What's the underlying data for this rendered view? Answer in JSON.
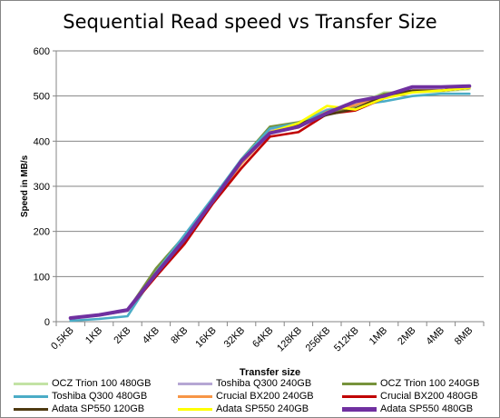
{
  "chart_data": {
    "type": "line",
    "title": "Sequential Read speed vs Transfer Size",
    "xlabel": "Transfer size",
    "ylabel": "Speed in MB/s",
    "ylim": [
      0,
      600
    ],
    "yticks": [
      0,
      100,
      200,
      300,
      400,
      500,
      600
    ],
    "grid": true,
    "legend_position": "bottom",
    "categories": [
      "0,5KB",
      "1KB",
      "2KB",
      "4KB",
      "8KB",
      "16KB",
      "32KB",
      "64KB",
      "128KB",
      "256KB",
      "512KB",
      "1MB",
      "2MB",
      "4MB",
      "8MB"
    ],
    "series": [
      {
        "name": "OCZ Trion 100 480GB",
        "color": "#c3e3a5",
        "values": [
          8,
          14,
          25,
          112,
          185,
          270,
          360,
          428,
          440,
          470,
          480,
          508,
          508,
          510,
          515
        ]
      },
      {
        "name": "Toshiba Q300 240GB",
        "color": "#b6a7d4",
        "values": [
          8,
          14,
          24,
          108,
          182,
          268,
          358,
          425,
          440,
          470,
          482,
          500,
          510,
          512,
          518
        ]
      },
      {
        "name": "OCZ Trion 100 240GB",
        "color": "#77933c",
        "values": [
          8,
          14,
          25,
          118,
          190,
          272,
          360,
          432,
          442,
          462,
          478,
          505,
          510,
          512,
          518
        ]
      },
      {
        "name": "Toshiba Q300 480GB",
        "color": "#4bacc6",
        "values": [
          2,
          6,
          12,
          110,
          192,
          275,
          360,
          428,
          440,
          468,
          480,
          488,
          500,
          505,
          505
        ]
      },
      {
        "name": "Crucial BX200 240GB",
        "color": "#f79646",
        "values": [
          8,
          14,
          25,
          100,
          175,
          265,
          350,
          418,
          430,
          465,
          480,
          500,
          512,
          512,
          518
        ]
      },
      {
        "name": "Crucial BX200 480GB",
        "color": "#c00000",
        "values": [
          8,
          14,
          25,
          100,
          172,
          262,
          340,
          410,
          420,
          460,
          468,
          495,
          512,
          512,
          518
        ]
      },
      {
        "name": "Adata SP550 120GB",
        "color": "#4f3a12",
        "values": [
          8,
          14,
          25,
          105,
          180,
          266,
          355,
          420,
          438,
          458,
          472,
          500,
          512,
          512,
          518
        ]
      },
      {
        "name": "Adata SP550 240GB",
        "color": "#ffff00",
        "values": [
          8,
          14,
          25,
          108,
          182,
          266,
          355,
          420,
          440,
          478,
          470,
          495,
          508,
          512,
          518
        ]
      },
      {
        "name": "Adata SP550 480GB",
        "color": "#7030a0",
        "values": [
          8,
          15,
          26,
          106,
          182,
          268,
          356,
          418,
          432,
          462,
          488,
          500,
          520,
          520,
          522
        ]
      }
    ]
  }
}
